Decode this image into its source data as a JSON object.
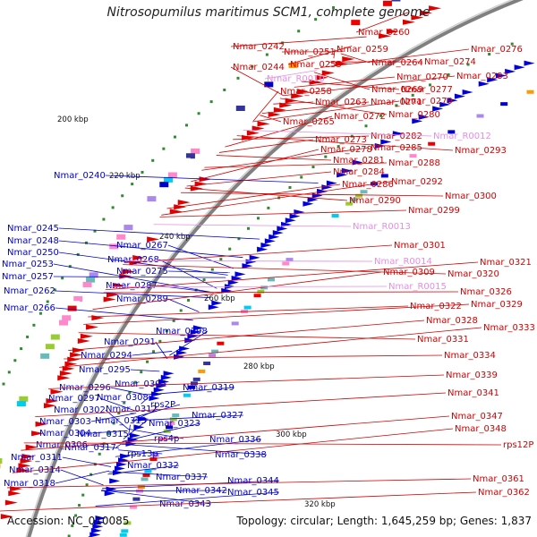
{
  "title": "Nitrosopumilus maritimus SCM1, complete genome",
  "footer": {
    "accession": "Accession: NC_010085",
    "summary": "Topology: circular; Length: 1,645,259 bp; Genes: 1,837"
  },
  "colors": {
    "plus_label": "#d40000",
    "minus_label": "#0000cc",
    "rna_label": "#e48ee4",
    "backbone": "#808080",
    "tick": "#2e8b2e"
  },
  "kbp_ticks": [
    "200 kbp",
    "220 kbp",
    "240 kbp",
    "260 kbp",
    "280 kbp",
    "300 kbp",
    "320 kbp"
  ],
  "minus_labels": [
    "Nmar_0240",
    "Nmar_0245",
    "Nmar_0248",
    "Nmar_0250",
    "Nmar_0253",
    "Nmar_0257",
    "Nmar_0262",
    "Nmar_0266",
    "Nmar_0267",
    "Nmar_0268",
    "Nmar_0275",
    "Nmar_0287",
    "Nmar_0289",
    "Nmar_0291",
    "Nmar_0298",
    "Nmar_0294",
    "Nmar_0295",
    "Nmar_0296",
    "Nmar_0297",
    "Nmar_0302",
    "Nmar_0303",
    "Nmar_0304",
    "Nmar_0306",
    "Nmar_0311",
    "Nmar_0314",
    "Nmar_0318",
    "Nmar_0305",
    "Nmar_0308",
    "Nmar_0312",
    "Nmar_0313",
    "Nmar_0315",
    "Nmar_0317",
    "Nmar_0319",
    "rps2P",
    "Nmar_0323",
    "rps4p",
    "rps13p",
    "Nmar_0327",
    "Nmar_0332",
    "Nmar_0336",
    "Nmar_0338",
    "Nmar_0337",
    "Nmar_0342",
    "Nmar_0344",
    "Nmar_0345",
    "Nmar_0343"
  ],
  "plus_labels": [
    "Nmar_0260",
    "Nmar_0242",
    "Nmar_0251",
    "Nmar_0259",
    "Nmar_0276",
    "Nmar_0244",
    "Nmar_0255",
    "Nmar_0264",
    "Nmar_0274",
    "Nmar_0270",
    "Nmar_0283",
    "Nmar_0258",
    "Nmar_0269",
    "Nmar_0277",
    "Nmar_0263",
    "Nmar_0271",
    "Nmar_0279",
    "Nmar_0272",
    "Nmar_0280",
    "Nmar_0265",
    "Nmar_0282",
    "Nmar_0273",
    "Nmar_0285",
    "Nmar_0278",
    "Nmar_0293",
    "Nmar_0281",
    "Nmar_0288",
    "Nmar_0284",
    "Nmar_0286",
    "Nmar_0292",
    "Nmar_0290",
    "Nmar_0300",
    "Nmar_0299",
    "Nmar_0301",
    "Nmar_0321",
    "Nmar_0309",
    "Nmar_0320",
    "Nmar_0326",
    "Nmar_0322",
    "Nmar_0329",
    "Nmar_0328",
    "Nmar_0333",
    "Nmar_0331",
    "Nmar_0334",
    "Nmar_0339",
    "Nmar_0341",
    "Nmar_0347",
    "Nmar_0348",
    "rps12P",
    "Nmar_0361",
    "Nmar_0362"
  ],
  "rna_labels": [
    "Nmar_R0010",
    "Nmar_R0012",
    "Nmar_R0013",
    "Nmar_R0014",
    "Nmar_R0015"
  ]
}
